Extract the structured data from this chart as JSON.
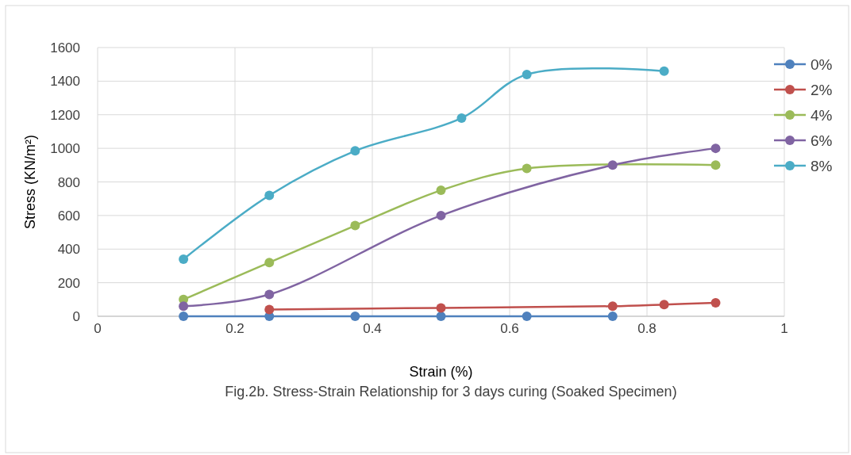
{
  "chart_data": {
    "type": "line",
    "xlabel": "Strain (%)",
    "ylabel": "Stress (KN/m²)",
    "annotations": [
      "Fig.2b. Stress-Strain Relationship for 3 days curing (Soaked Specimen)"
    ],
    "xlim": [
      0,
      1
    ],
    "xticks": [
      0,
      0.2,
      0.4,
      0.6,
      0.8,
      1
    ],
    "ylim": [
      0,
      1600
    ],
    "yticks": [
      0,
      200,
      400,
      600,
      800,
      1000,
      1200,
      1400,
      1600
    ],
    "grid": true,
    "legend": "right",
    "marker": "circle",
    "line_style": "solid",
    "series": [
      {
        "name": "0%",
        "color": "#4f81bd",
        "x": [
          0.125,
          0.25,
          0.375,
          0.5,
          0.625,
          0.75
        ],
        "values": [
          0,
          0,
          0,
          0,
          0,
          0
        ]
      },
      {
        "name": "2%",
        "color": "#c0504d",
        "x": [
          0.25,
          0.5,
          0.75,
          0.825,
          0.9
        ],
        "values": [
          40,
          50,
          60,
          70,
          80
        ]
      },
      {
        "name": "4%",
        "color": "#9bbb59",
        "x": [
          0.125,
          0.25,
          0.375,
          0.5,
          0.625,
          0.9
        ],
        "values": [
          100,
          320,
          540,
          750,
          880,
          900
        ]
      },
      {
        "name": "6%",
        "color": "#8064a2",
        "x": [
          0.125,
          0.25,
          0.5,
          0.75,
          0.9
        ],
        "values": [
          60,
          130,
          600,
          900,
          1000
        ]
      },
      {
        "name": "8%",
        "color": "#4bacc6",
        "x": [
          0.125,
          0.25,
          0.375,
          0.53,
          0.625,
          0.825
        ],
        "values": [
          340,
          720,
          985,
          1180,
          1440,
          1460
        ]
      }
    ]
  }
}
